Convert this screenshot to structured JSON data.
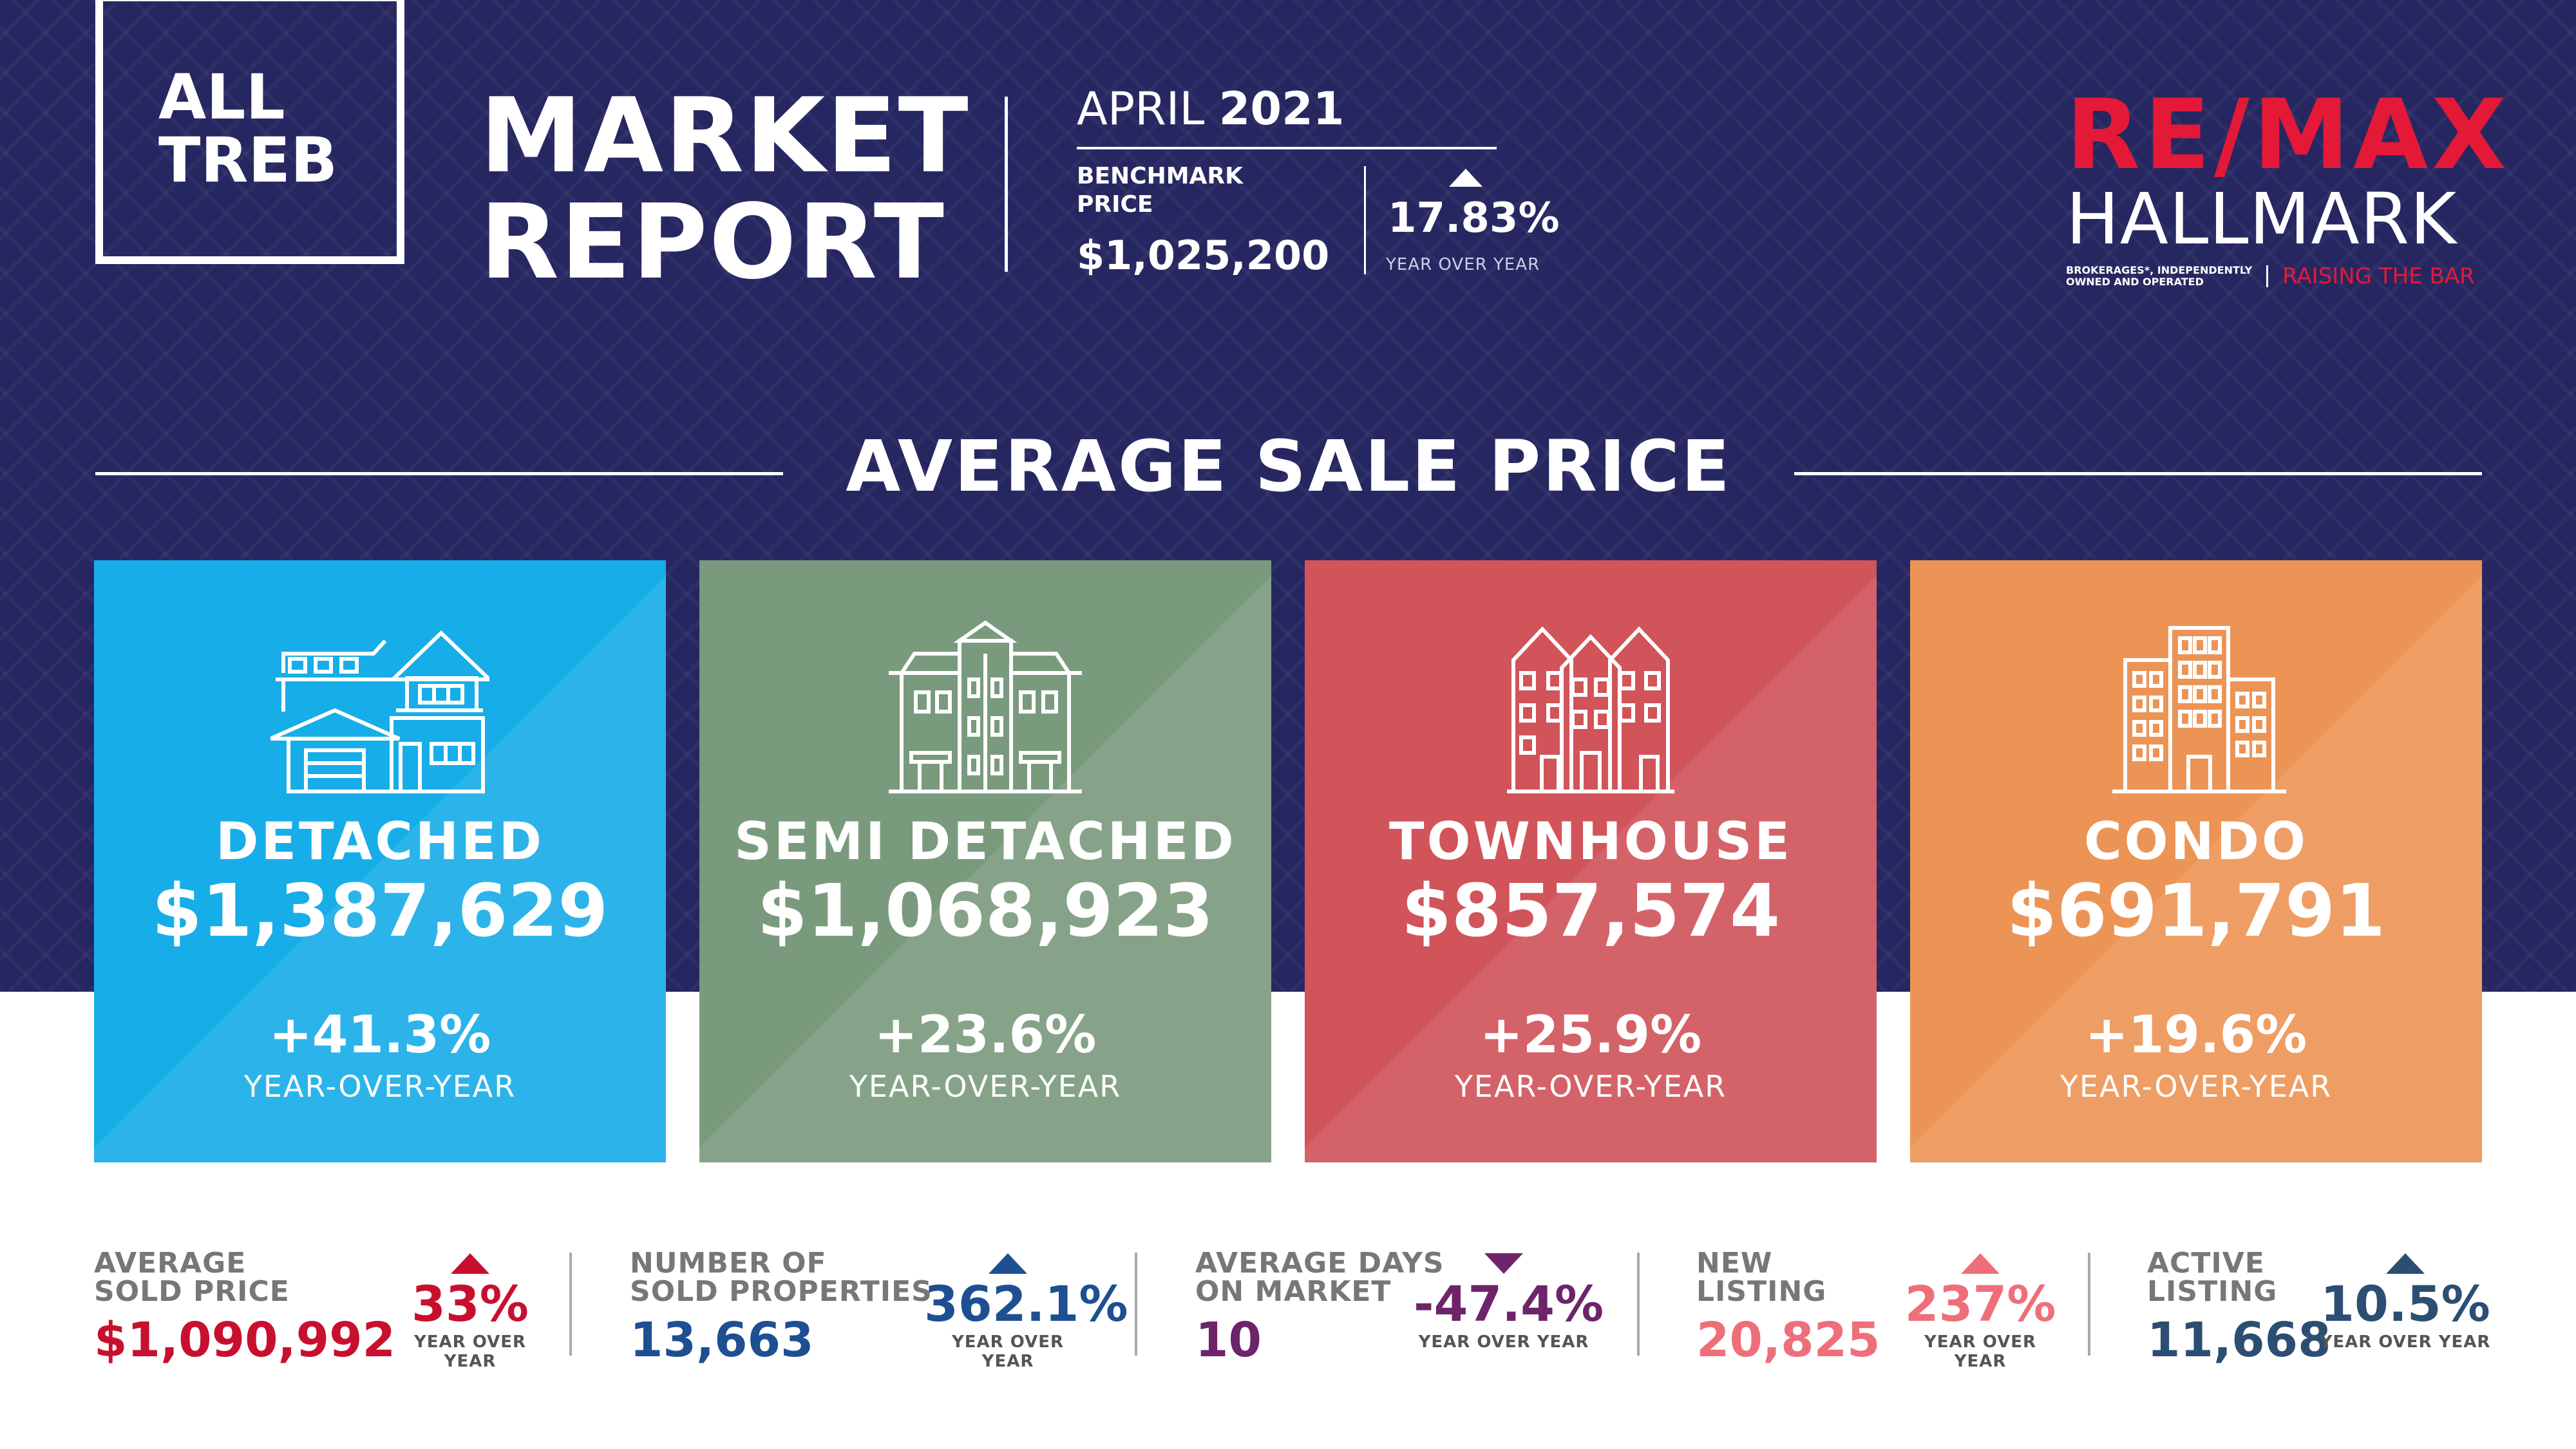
{
  "header": {
    "box_line1": "ALL",
    "box_line2": "TREB",
    "title_line1": "MARKET",
    "title_line2": "REPORT",
    "month": "APRIL",
    "year": "2021",
    "benchmark_label_1": "BENCHMARK",
    "benchmark_label_2": "PRICE",
    "benchmark_price": "$1,025,200",
    "benchmark_change": "17.83%",
    "benchmark_change_label": "YEAR OVER YEAR"
  },
  "logo": {
    "brand": "RE/MAX",
    "name": "HALLMARK",
    "small_1": "BROKERAGES*, INDEPENDENTLY",
    "small_2": "OWNED AND OPERATED",
    "tagline": "RAISING THE BAR"
  },
  "section_title": "AVERAGE SALE PRICE",
  "cards": [
    {
      "type": "DETACHED",
      "price": "$1,387,629",
      "change": "+41.3%",
      "change_label": "YEAR-OVER-YEAR",
      "color": "#17ade8",
      "icon": "detached-house-icon"
    },
    {
      "type": "SEMI DETACHED",
      "price": "$1,068,923",
      "change": "+23.6%",
      "change_label": "YEAR-OVER-YEAR",
      "color": "#7a9a7e",
      "icon": "semi-detached-house-icon"
    },
    {
      "type": "TOWNHOUSE",
      "price": "$857,574",
      "change": "+25.9%",
      "change_label": "YEAR-OVER-YEAR",
      "color": "#d0545a",
      "icon": "townhouse-icon"
    },
    {
      "type": "CONDO",
      "price": "$691,791",
      "change": "+19.6%",
      "change_label": "YEAR-OVER-YEAR",
      "color": "#ec9456",
      "icon": "condo-building-icon"
    }
  ],
  "stats": [
    {
      "label_1": "AVERAGE",
      "label_2": "SOLD PRICE",
      "value": "$1,090,992",
      "change": "33%",
      "change_label": "YEAR OVER YEAR",
      "direction": "up",
      "color": "#c8102e"
    },
    {
      "label_1": "NUMBER OF",
      "label_2": "SOLD PROPERTIES",
      "value": "13,663",
      "change": "362.1%",
      "change_label": "YEAR OVER YEAR",
      "direction": "up",
      "color": "#1d4f91"
    },
    {
      "label_1": "AVERAGE DAYS",
      "label_2": "ON MARKET",
      "value": "10",
      "change": "-47.4%",
      "change_label": "YEAR OVER YEAR",
      "direction": "down",
      "color": "#6d2469"
    },
    {
      "label_1": "NEW",
      "label_2": "LISTING",
      "value": "20,825",
      "change": "237%",
      "change_label": "YEAR OVER YEAR",
      "direction": "up",
      "color": "#ee6f7a"
    },
    {
      "label_1": "ACTIVE",
      "label_2": "LISTING",
      "value": "11,668",
      "change": "10.5%",
      "change_label": "YEAR OVER YEAR",
      "direction": "up",
      "color": "#2c4e73"
    }
  ],
  "colors": {
    "navy_background": "#262761",
    "remax_red": "#e31937"
  }
}
